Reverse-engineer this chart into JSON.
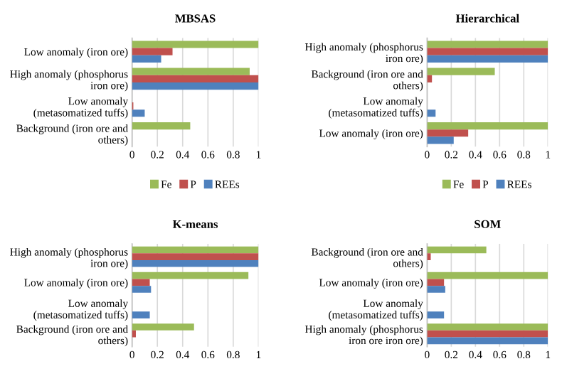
{
  "chart_data": [
    {
      "type": "bar",
      "orientation": "horizontal",
      "title": "MBSAS",
      "categories": [
        "Low anomaly (iron ore)",
        "High anomaly (phosphorus iron ore)",
        "Low anomaly (metasomatized tuffs)",
        "Background (iron ore and others)"
      ],
      "series": [
        {
          "name": "Fe",
          "color": "#9bbb59",
          "values": [
            1,
            0.93,
            0,
            0.46
          ]
        },
        {
          "name": "P",
          "color": "#c0504d",
          "values": [
            0.32,
            1,
            0.01,
            0
          ]
        },
        {
          "name": "REEs",
          "color": "#4f81bd",
          "values": [
            0.23,
            1,
            0.1,
            0
          ]
        }
      ],
      "xlim": [
        0,
        1
      ],
      "xticks": [
        0,
        0.2,
        0.4,
        0.6,
        0.8,
        1
      ],
      "grid": "x",
      "legend": "bottom"
    },
    {
      "type": "bar",
      "orientation": "horizontal",
      "title": "Hierarchical",
      "categories": [
        "High anomaly (phosphorus iron ore)",
        "Background (iron ore and others)",
        "Low anomaly (metasomatized tuffs)",
        "Low anomaly (iron ore)"
      ],
      "series": [
        {
          "name": "Fe",
          "color": "#9bbb59",
          "values": [
            1,
            0.56,
            0,
            1
          ]
        },
        {
          "name": "P",
          "color": "#c0504d",
          "values": [
            1,
            0.04,
            0,
            0.34
          ]
        },
        {
          "name": "REEs",
          "color": "#4f81bd",
          "values": [
            1,
            0,
            0.07,
            0.22
          ]
        }
      ],
      "xlim": [
        0,
        1
      ],
      "xticks": [
        0,
        0.2,
        0.4,
        0.6,
        0.8,
        1
      ],
      "grid": "x",
      "legend": "bottom"
    },
    {
      "type": "bar",
      "orientation": "horizontal",
      "title": "K-means",
      "categories": [
        "High anomaly (phosphorus iron ore)",
        "Low anomaly (iron ore)",
        "Low anomaly (metasomatized tuffs)",
        "Background (iron ore and others)"
      ],
      "series": [
        {
          "color": "#9bbb59",
          "values": [
            1,
            0.92,
            0,
            0.49
          ]
        },
        {
          "color": "#c0504d",
          "values": [
            1,
            0.14,
            0,
            0.03
          ]
        },
        {
          "color": "#4f81bd",
          "values": [
            1,
            0.15,
            0.14,
            0
          ]
        }
      ],
      "xlim": [
        0,
        1
      ],
      "xticks": [
        0,
        0.2,
        0.4,
        0.6,
        0.8,
        1
      ],
      "grid": "x"
    },
    {
      "type": "bar",
      "orientation": "horizontal",
      "title": "SOM",
      "categories": [
        "Background (iron ore and others)",
        "Low anomaly (iron ore)",
        "Low anomaly (metasomatized tuffs)",
        "High anomaly (phosphorus iron ore iron ore)"
      ],
      "series": [
        {
          "color": "#9bbb59",
          "values": [
            0.49,
            1,
            0,
            1
          ]
        },
        {
          "color": "#c0504d",
          "values": [
            0.03,
            0.14,
            0,
            1
          ]
        },
        {
          "color": "#4f81bd",
          "values": [
            0,
            0.15,
            0.14,
            1
          ]
        }
      ],
      "xlim": [
        0,
        1
      ],
      "xticks": [
        0,
        0.2,
        0.4,
        0.6,
        0.8,
        1
      ],
      "grid": "x"
    }
  ]
}
